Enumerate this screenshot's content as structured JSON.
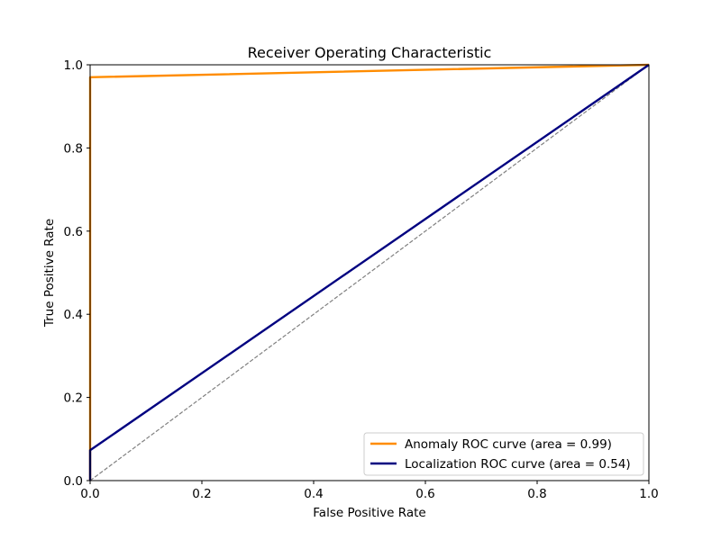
{
  "chart_data": {
    "type": "line",
    "title": "Receiver Operating Characteristic",
    "xlabel": "False Positive Rate",
    "ylabel": "True Positive Rate",
    "xlim": [
      0.0,
      1.0
    ],
    "ylim": [
      0.0,
      1.0
    ],
    "xticks": [
      "0.0",
      "0.2",
      "0.4",
      "0.6",
      "0.8",
      "1.0"
    ],
    "yticks": [
      "0.0",
      "0.2",
      "0.4",
      "0.6",
      "0.8",
      "1.0"
    ],
    "xtick_values": [
      0.0,
      0.2,
      0.4,
      0.6,
      0.8,
      1.0
    ],
    "ytick_values": [
      0.0,
      0.2,
      0.4,
      0.6,
      0.8,
      1.0
    ],
    "grid": false,
    "legend_position": "lower-right",
    "series": [
      {
        "name": "Anomaly ROC curve (area = 0.99)",
        "color": "#ff8c00",
        "x": [
          0.0,
          0.0,
          1.0
        ],
        "y": [
          0.0,
          0.97,
          1.0
        ]
      },
      {
        "name": "Localization ROC curve (area = 0.54)",
        "color": "#000080",
        "x": [
          0.0,
          0.0,
          1.0
        ],
        "y": [
          0.0,
          0.073,
          1.0
        ]
      }
    ],
    "reference_line": {
      "color": "#808080",
      "style": "dashed",
      "x": [
        0.0,
        1.0
      ],
      "y": [
        0.0,
        1.0
      ]
    }
  }
}
